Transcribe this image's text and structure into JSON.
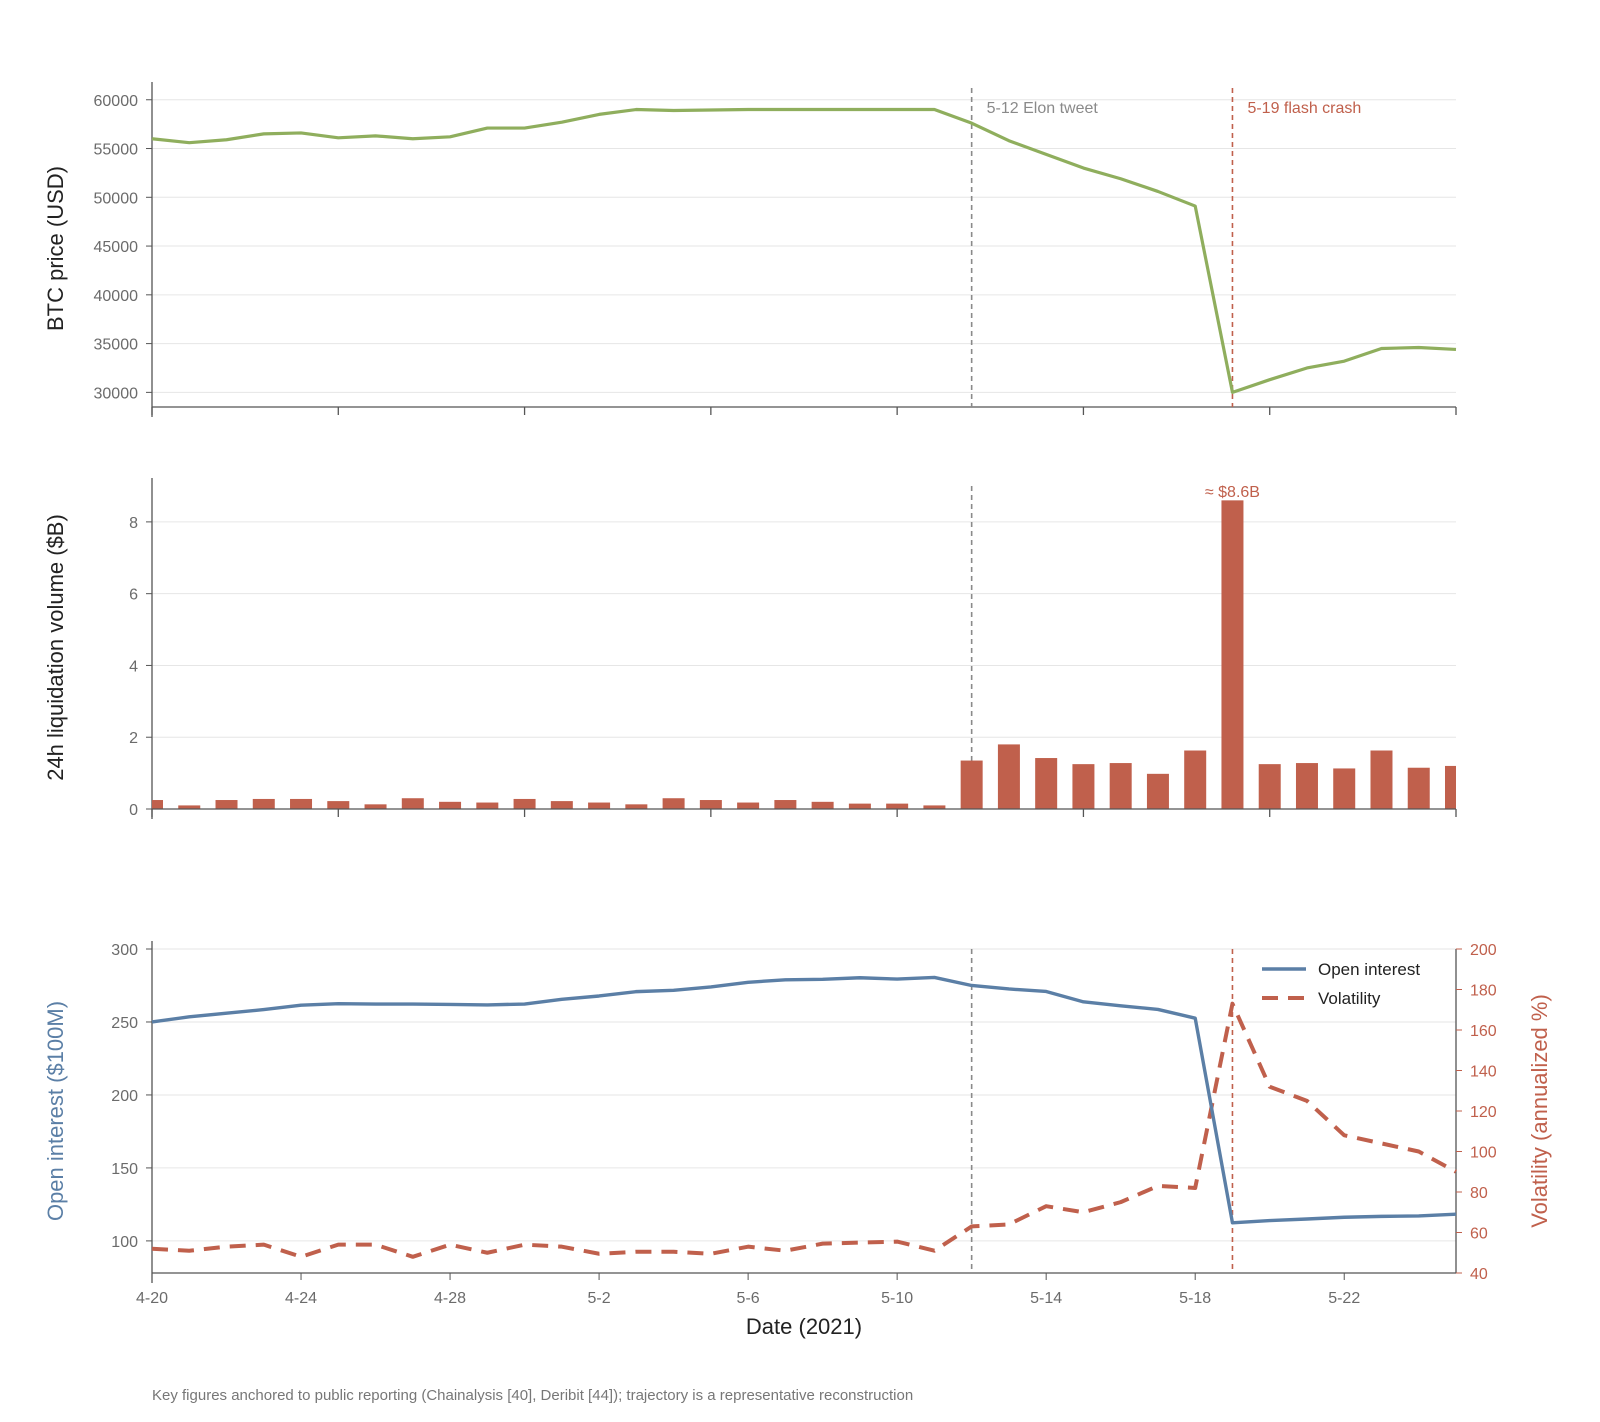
{
  "chart_data": [
    {
      "type": "line",
      "ylabel": "BTC price (USD)",
      "ylim": [
        28500,
        61000
      ],
      "yticks": [
        30000,
        35000,
        40000,
        45000,
        50000,
        55000,
        60000
      ],
      "grid": true,
      "color": "#8fae5d",
      "series": [
        {
          "x": [
            "4-20",
            "4-21",
            "4-22",
            "4-23",
            "4-24",
            "4-25",
            "4-26",
            "4-27",
            "4-28",
            "4-29",
            "4-30",
            "5-1",
            "5-2",
            "5-3",
            "5-4",
            "5-5",
            "5-6",
            "5-7",
            "5-8",
            "5-9",
            "5-10",
            "5-11",
            "5-12",
            "5-13",
            "5-14",
            "5-15",
            "5-16",
            "5-17",
            "5-18",
            "5-19",
            "5-20",
            "5-21",
            "5-22",
            "5-23",
            "5-24",
            "5-25"
          ],
          "values": [
            56000,
            55600,
            55900,
            56500,
            56600,
            56100,
            56300,
            56000,
            56200,
            57100,
            57100,
            57700,
            58500,
            59000,
            58900,
            58950,
            59000,
            59000,
            59000,
            59000,
            59000,
            59000,
            57600,
            55800,
            54400,
            53000,
            51900,
            50600,
            49100,
            30000,
            31300,
            32500,
            33200,
            34500,
            34600,
            34400
          ]
        }
      ],
      "annotations": [
        {
          "x": "5-12",
          "text": "5-12 Elon tweet",
          "color": "#8a8a8a"
        },
        {
          "x": "5-19",
          "text": "5-19 flash crash",
          "color": "#c0604c"
        }
      ]
    },
    {
      "type": "bar",
      "ylabel": "24h liquidation volume ($B)",
      "ylim": [
        0,
        9
      ],
      "yticks": [
        0,
        2,
        4,
        6,
        8
      ],
      "grid": true,
      "color": "#c0604c",
      "categories": [
        "4-20",
        "4-21",
        "4-22",
        "4-23",
        "4-24",
        "4-25",
        "4-26",
        "4-27",
        "4-28",
        "4-29",
        "4-30",
        "5-1",
        "5-2",
        "5-3",
        "5-4",
        "5-5",
        "5-6",
        "5-7",
        "5-8",
        "5-9",
        "5-10",
        "5-11",
        "5-12",
        "5-13",
        "5-14",
        "5-15",
        "5-16",
        "5-17",
        "5-18",
        "5-19",
        "5-20",
        "5-21",
        "5-22",
        "5-23",
        "5-24",
        "5-25"
      ],
      "values": [
        0.25,
        0.1,
        0.25,
        0.28,
        0.28,
        0.22,
        0.13,
        0.3,
        0.2,
        0.18,
        0.28,
        0.22,
        0.18,
        0.13,
        0.3,
        0.25,
        0.18,
        0.25,
        0.2,
        0.15,
        0.15,
        0.1,
        1.35,
        1.8,
        1.42,
        1.25,
        1.28,
        0.98,
        1.63,
        8.6,
        1.25,
        1.28,
        1.13,
        1.63,
        1.15,
        1.2
      ],
      "annotations": [
        {
          "x": "5-12",
          "color": "#8a8a8a"
        },
        {
          "x": "5-19",
          "text": "≈ $8.6B",
          "color": "#c0604c"
        }
      ]
    },
    {
      "type": "line",
      "xlabel": "Date (2021)",
      "ylabel": "Open interest ($100M)",
      "ylabel_right": "Volatility (annualized %)",
      "ylim": [
        78,
        300
      ],
      "ylim_right": [
        40,
        200
      ],
      "yticks": [
        100,
        150,
        200,
        250,
        300
      ],
      "yticks_right": [
        40,
        60,
        80,
        100,
        120,
        140,
        160,
        180,
        200
      ],
      "xticks": [
        "4-20",
        "4-24",
        "4-28",
        "5-2",
        "5-6",
        "5-10",
        "5-14",
        "5-18",
        "5-22"
      ],
      "grid": true,
      "legend": "top-right",
      "x": [
        "4-20",
        "4-21",
        "4-22",
        "4-23",
        "4-24",
        "4-25",
        "4-26",
        "4-27",
        "4-28",
        "4-29",
        "4-30",
        "5-1",
        "5-2",
        "5-3",
        "5-4",
        "5-5",
        "5-6",
        "5-7",
        "5-8",
        "5-9",
        "5-10",
        "5-11",
        "5-12",
        "5-13",
        "5-14",
        "5-15",
        "5-16",
        "5-17",
        "5-18",
        "5-19",
        "5-20",
        "5-21",
        "5-22",
        "5-23",
        "5-24",
        "5-25"
      ],
      "series": [
        {
          "name": "Open interest",
          "axis": "left",
          "color": "#5b7fa6",
          "values": [
            250,
            253.5,
            256,
            258.5,
            261.5,
            262.5,
            262.3,
            262.3,
            262,
            261.7,
            262.3,
            265.5,
            267.8,
            270.8,
            271.7,
            274,
            277.2,
            278.9,
            279.2,
            280.3,
            279.4,
            280.5,
            275,
            272.6,
            270.9,
            263.8,
            261.1,
            258.6,
            252.6,
            112.4,
            113.9,
            115,
            116.2,
            116.8,
            117.1,
            118.3
          ]
        },
        {
          "name": "Volatility",
          "axis": "right",
          "color": "#c0604c",
          "dashed": true,
          "values": [
            52,
            51,
            53,
            54,
            48,
            54,
            54,
            48,
            54,
            50,
            54,
            53,
            49.5,
            50.5,
            50.5,
            49.5,
            53,
            51,
            54.5,
            55,
            55.5,
            51,
            63,
            64,
            73,
            70,
            75,
            83,
            82,
            173,
            132,
            125,
            108,
            104,
            100,
            90
          ]
        }
      ]
    }
  ],
  "footnote": "Key figures anchored to public reporting (Chainalysis [40], Deribit [44]); trajectory is a representative reconstruction"
}
